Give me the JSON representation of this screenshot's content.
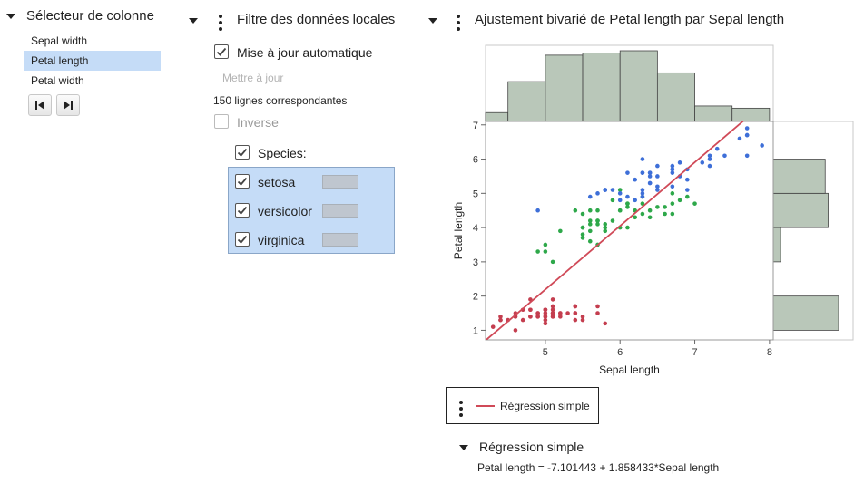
{
  "column_selector": {
    "title": "Sélecteur de colonne",
    "items": [
      {
        "label": "Sepal width",
        "selected": false
      },
      {
        "label": "Petal length",
        "selected": true
      },
      {
        "label": "Petal width",
        "selected": false
      }
    ],
    "first_icon": "skip-to-start-icon",
    "last_icon": "skip-to-end-icon"
  },
  "local_filter": {
    "title": "Filtre des données locales",
    "auto_update_label": "Mise à jour automatique",
    "auto_update_checked": true,
    "update_button_label": "Mettre à jour",
    "matching_rows": "150 lignes correspondantes",
    "inverse_label": "Inverse",
    "inverse_checked": false,
    "species_label": "Species:",
    "species": [
      {
        "label": "setosa",
        "checked": true
      },
      {
        "label": "versicolor",
        "checked": true
      },
      {
        "label": "virginica",
        "checked": true
      }
    ]
  },
  "fit_report": {
    "title": "Ajustement bivarié de Petal length par Sepal length",
    "legend_label": "Régression simple",
    "regression_outline_title": "Régression simple",
    "equation": "Petal length = -7.101443 + 1.858433*Sepal length"
  },
  "colors": {
    "selection": "#c5dcf7",
    "setosa": "#c43e4f",
    "versicolor": "#2ea84a",
    "virginica": "#3e6fd8",
    "regression_line": "#d04a58",
    "histogram_fill": "#b9c7b9"
  },
  "chart_data": {
    "type": "scatter",
    "xlabel": "Sepal length",
    "ylabel": "Petal length",
    "xlim": [
      4.2,
      8.05
    ],
    "ylim": [
      0.72,
      7.1
    ],
    "x_ticks": [
      "5",
      "6",
      "7",
      "8"
    ],
    "y_ticks": [
      "1",
      "2",
      "3",
      "4",
      "5",
      "6",
      "7"
    ],
    "regression": {
      "intercept": -7.101443,
      "slope": 1.858433
    },
    "x_histogram": {
      "bin_edges": [
        4.2,
        4.5,
        5.0,
        5.5,
        6.0,
        6.5,
        7.0,
        7.5,
        8.0
      ],
      "counts": [
        4,
        18,
        30,
        31,
        32,
        22,
        7,
        6
      ]
    },
    "y_histogram": {
      "bin_edges": [
        1.0,
        2.0,
        3.0,
        4.0,
        5.0,
        6.0,
        7.0
      ],
      "counts": [
        50,
        0,
        11,
        43,
        41,
        5
      ]
    },
    "series": [
      {
        "points": [
          [
            5.1,
            1.4
          ],
          [
            4.9,
            1.4
          ],
          [
            4.7,
            1.3
          ],
          [
            4.6,
            1.5
          ],
          [
            5.0,
            1.4
          ],
          [
            5.4,
            1.7
          ],
          [
            4.6,
            1.4
          ],
          [
            5.0,
            1.5
          ],
          [
            4.4,
            1.4
          ],
          [
            4.9,
            1.5
          ],
          [
            5.4,
            1.5
          ],
          [
            4.8,
            1.6
          ],
          [
            4.8,
            1.4
          ],
          [
            4.3,
            1.1
          ],
          [
            5.8,
            1.2
          ],
          [
            5.7,
            1.5
          ],
          [
            5.4,
            1.3
          ],
          [
            5.1,
            1.4
          ],
          [
            5.7,
            1.7
          ],
          [
            5.1,
            1.5
          ],
          [
            5.4,
            1.7
          ],
          [
            5.1,
            1.5
          ],
          [
            4.6,
            1.0
          ],
          [
            5.1,
            1.7
          ],
          [
            4.8,
            1.9
          ],
          [
            5.0,
            1.6
          ],
          [
            5.0,
            1.6
          ],
          [
            5.2,
            1.5
          ],
          [
            5.2,
            1.4
          ],
          [
            4.7,
            1.6
          ],
          [
            4.8,
            1.6
          ],
          [
            5.4,
            1.5
          ],
          [
            5.2,
            1.5
          ],
          [
            5.5,
            1.4
          ],
          [
            4.9,
            1.5
          ],
          [
            5.0,
            1.2
          ],
          [
            5.5,
            1.3
          ],
          [
            4.9,
            1.4
          ],
          [
            4.4,
            1.3
          ],
          [
            5.1,
            1.5
          ],
          [
            5.0,
            1.3
          ],
          [
            4.5,
            1.3
          ],
          [
            4.4,
            1.3
          ],
          [
            5.0,
            1.6
          ],
          [
            5.1,
            1.9
          ],
          [
            4.8,
            1.4
          ],
          [
            5.1,
            1.6
          ],
          [
            4.6,
            1.4
          ],
          [
            5.3,
            1.5
          ],
          [
            5.0,
            1.4
          ]
        ]
      },
      {
        "points": [
          [
            7.0,
            4.7
          ],
          [
            6.4,
            4.5
          ],
          [
            6.9,
            4.9
          ],
          [
            5.5,
            4.0
          ],
          [
            6.5,
            4.6
          ],
          [
            5.7,
            4.5
          ],
          [
            6.3,
            4.7
          ],
          [
            4.9,
            3.3
          ],
          [
            6.6,
            4.6
          ],
          [
            5.2,
            3.9
          ],
          [
            5.0,
            3.5
          ],
          [
            5.9,
            4.2
          ],
          [
            6.0,
            4.0
          ],
          [
            6.1,
            4.7
          ],
          [
            5.6,
            3.6
          ],
          [
            6.7,
            4.4
          ],
          [
            5.6,
            4.5
          ],
          [
            5.8,
            4.1
          ],
          [
            6.2,
            4.5
          ],
          [
            5.6,
            3.9
          ],
          [
            5.9,
            4.8
          ],
          [
            6.1,
            4.0
          ],
          [
            6.3,
            4.9
          ],
          [
            6.1,
            4.7
          ],
          [
            6.4,
            4.3
          ],
          [
            6.6,
            4.4
          ],
          [
            6.8,
            4.8
          ],
          [
            6.7,
            5.0
          ],
          [
            6.0,
            4.5
          ],
          [
            5.7,
            3.5
          ],
          [
            5.5,
            3.8
          ],
          [
            5.5,
            3.7
          ],
          [
            5.8,
            3.9
          ],
          [
            6.0,
            5.1
          ],
          [
            5.4,
            4.5
          ],
          [
            6.0,
            4.5
          ],
          [
            6.7,
            4.7
          ],
          [
            6.3,
            4.4
          ],
          [
            5.6,
            4.1
          ],
          [
            5.5,
            4.0
          ],
          [
            5.5,
            4.4
          ],
          [
            6.1,
            4.6
          ],
          [
            5.8,
            4.0
          ],
          [
            5.0,
            3.3
          ],
          [
            5.6,
            4.2
          ],
          [
            5.7,
            4.2
          ],
          [
            5.7,
            4.2
          ],
          [
            6.2,
            4.3
          ],
          [
            5.1,
            3.0
          ],
          [
            5.7,
            4.1
          ]
        ]
      },
      {
        "points": [
          [
            6.3,
            6.0
          ],
          [
            5.8,
            5.1
          ],
          [
            7.1,
            5.9
          ],
          [
            6.3,
            5.6
          ],
          [
            6.5,
            5.8
          ],
          [
            7.6,
            6.6
          ],
          [
            4.9,
            4.5
          ],
          [
            7.3,
            6.3
          ],
          [
            6.7,
            5.8
          ],
          [
            7.2,
            6.1
          ],
          [
            6.5,
            5.1
          ],
          [
            6.4,
            5.3
          ],
          [
            6.8,
            5.5
          ],
          [
            5.7,
            5.0
          ],
          [
            5.8,
            5.1
          ],
          [
            6.4,
            5.3
          ],
          [
            6.5,
            5.5
          ],
          [
            7.7,
            6.7
          ],
          [
            7.7,
            6.9
          ],
          [
            6.0,
            5.0
          ],
          [
            6.9,
            5.7
          ],
          [
            5.6,
            4.9
          ],
          [
            7.7,
            6.7
          ],
          [
            6.3,
            4.9
          ],
          [
            6.7,
            5.7
          ],
          [
            7.2,
            6.0
          ],
          [
            6.2,
            4.8
          ],
          [
            6.1,
            4.9
          ],
          [
            6.4,
            5.6
          ],
          [
            7.2,
            5.8
          ],
          [
            7.4,
            6.1
          ],
          [
            7.9,
            6.4
          ],
          [
            6.4,
            5.6
          ],
          [
            6.3,
            5.1
          ],
          [
            6.1,
            5.6
          ],
          [
            7.7,
            6.1
          ],
          [
            6.3,
            5.6
          ],
          [
            6.4,
            5.5
          ],
          [
            6.0,
            4.8
          ],
          [
            6.9,
            5.4
          ],
          [
            6.7,
            5.6
          ],
          [
            6.9,
            5.1
          ],
          [
            5.8,
            5.1
          ],
          [
            6.8,
            5.9
          ],
          [
            6.7,
            5.7
          ],
          [
            6.7,
            5.2
          ],
          [
            6.3,
            5.0
          ],
          [
            6.5,
            5.2
          ],
          [
            6.2,
            5.4
          ],
          [
            5.9,
            5.1
          ]
        ]
      }
    ]
  }
}
